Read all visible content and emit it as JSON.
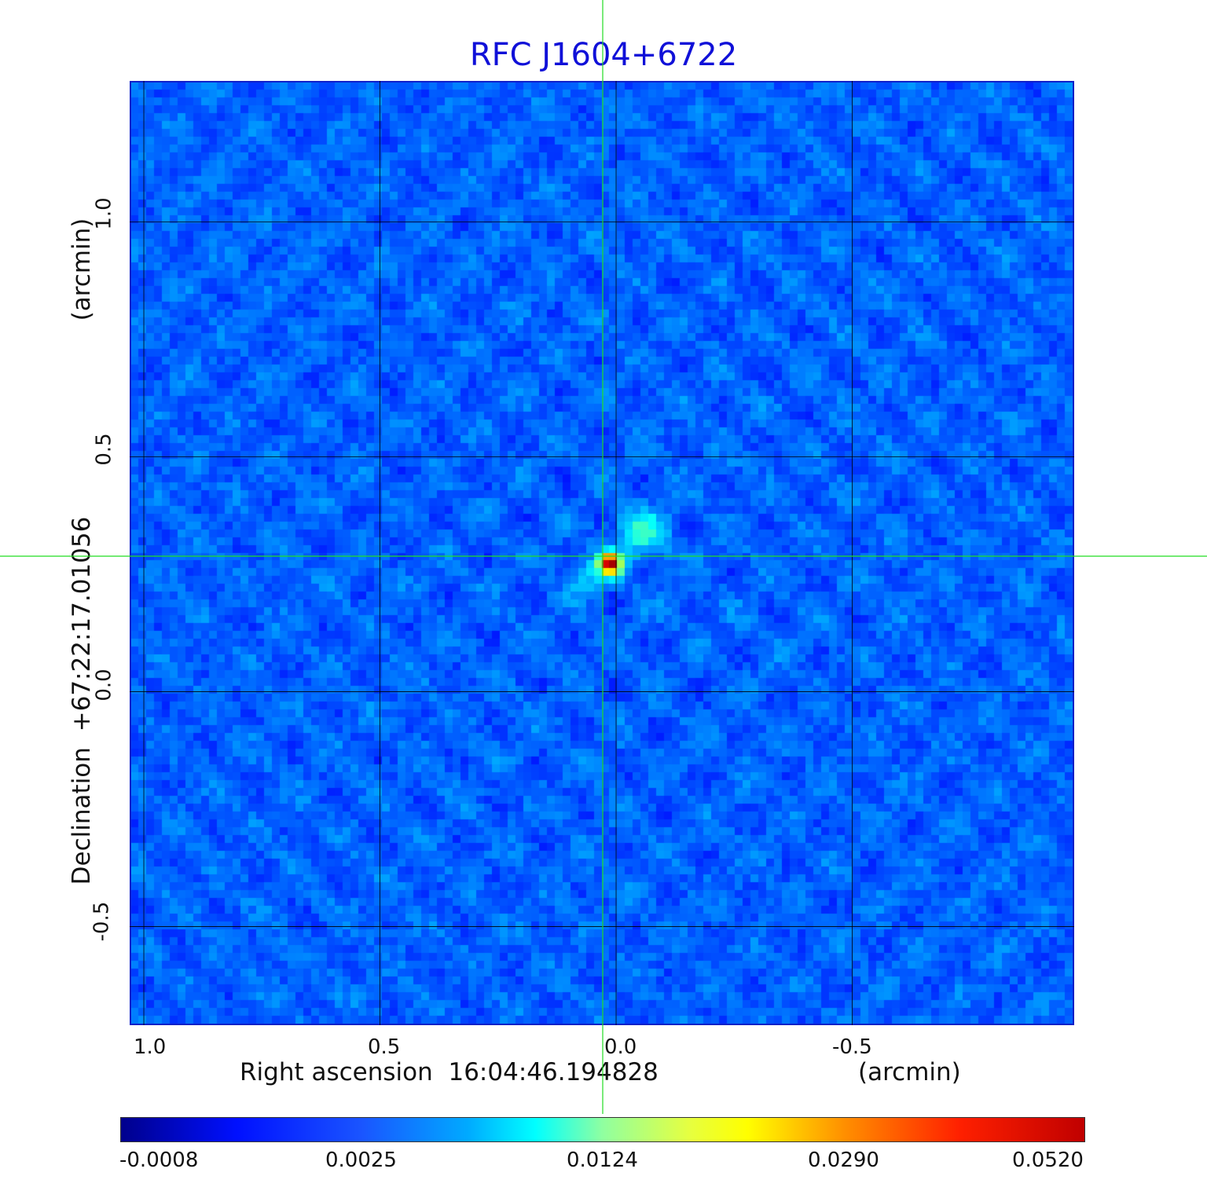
{
  "title": "RFC J1604+6722",
  "image": {
    "type": "radio-map",
    "colormap": "jet",
    "source_position": {
      "ra_offset_arcmin": 0.02,
      "dec_offset_arcmin": 0.28
    }
  },
  "axes": {
    "x": {
      "label": "Right ascension  16:04:46.194828",
      "unit": "(arcmin)",
      "ticks": [
        "1.0",
        "0.5",
        "0.0",
        "-0.5"
      ],
      "tick_values": [
        1.0,
        0.5,
        0.0,
        -0.5
      ],
      "range": [
        1.03,
        -0.97
      ]
    },
    "y": {
      "label": "Declination  +67:22:17.01056",
      "unit": "(arcmin)",
      "ticks": [
        "1.0",
        "0.5",
        "0.0",
        "-0.5"
      ],
      "tick_values": [
        1.0,
        0.5,
        0.0,
        -0.5
      ],
      "range": [
        -0.71,
        1.3
      ]
    },
    "grid": true,
    "grid_color": "#000000"
  },
  "crosshair": {
    "color": "#22dd22"
  },
  "colorbar": {
    "ticks": [
      "-0.0008",
      "0.0025",
      "0.0124",
      "0.0290",
      "0.0520"
    ],
    "tick_values": [
      -0.0008,
      0.0025,
      0.0124,
      0.029,
      0.052
    ],
    "colors": [
      "#00008c",
      "#0010ff",
      "#00ffff",
      "#ffff00",
      "#ff2000",
      "#c00000"
    ]
  }
}
